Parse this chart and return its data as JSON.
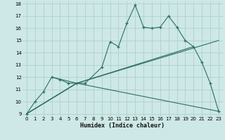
{
  "xlabel": "Humidex (Indice chaleur)",
  "bg_color": "#cde8e6",
  "grid_color": "#afd0ce",
  "line_color": "#2d6e65",
  "xlim": [
    0,
    23
  ],
  "ylim": [
    9,
    18
  ],
  "xticks": [
    0,
    1,
    2,
    3,
    4,
    5,
    6,
    7,
    8,
    9,
    10,
    11,
    12,
    13,
    14,
    15,
    16,
    17,
    18,
    19,
    20,
    21,
    22,
    23
  ],
  "yticks": [
    9,
    10,
    11,
    12,
    13,
    14,
    15,
    16,
    17,
    18
  ],
  "main_line": {
    "x": [
      0,
      1,
      2,
      3,
      4,
      5,
      6,
      7,
      9,
      10,
      11,
      12,
      13,
      14,
      15,
      16,
      17,
      18,
      19,
      20,
      21,
      22,
      23
    ],
    "y": [
      9.0,
      10.0,
      10.8,
      12.0,
      11.8,
      11.5,
      11.5,
      11.5,
      12.8,
      14.9,
      14.5,
      16.4,
      17.9,
      16.1,
      16.0,
      16.1,
      17.0,
      16.1,
      15.0,
      14.5,
      13.2,
      11.5,
      9.2
    ]
  },
  "straight_lines": [
    {
      "x": [
        0,
        6,
        20
      ],
      "y": [
        9.0,
        11.5,
        14.5
      ]
    },
    {
      "x": [
        0,
        6,
        23
      ],
      "y": [
        9.0,
        11.5,
        15.0
      ]
    },
    {
      "x": [
        0,
        6,
        23
      ],
      "y": [
        9.0,
        11.5,
        9.2
      ]
    },
    {
      "x": [
        3,
        6
      ],
      "y": [
        12.0,
        11.5
      ]
    }
  ]
}
